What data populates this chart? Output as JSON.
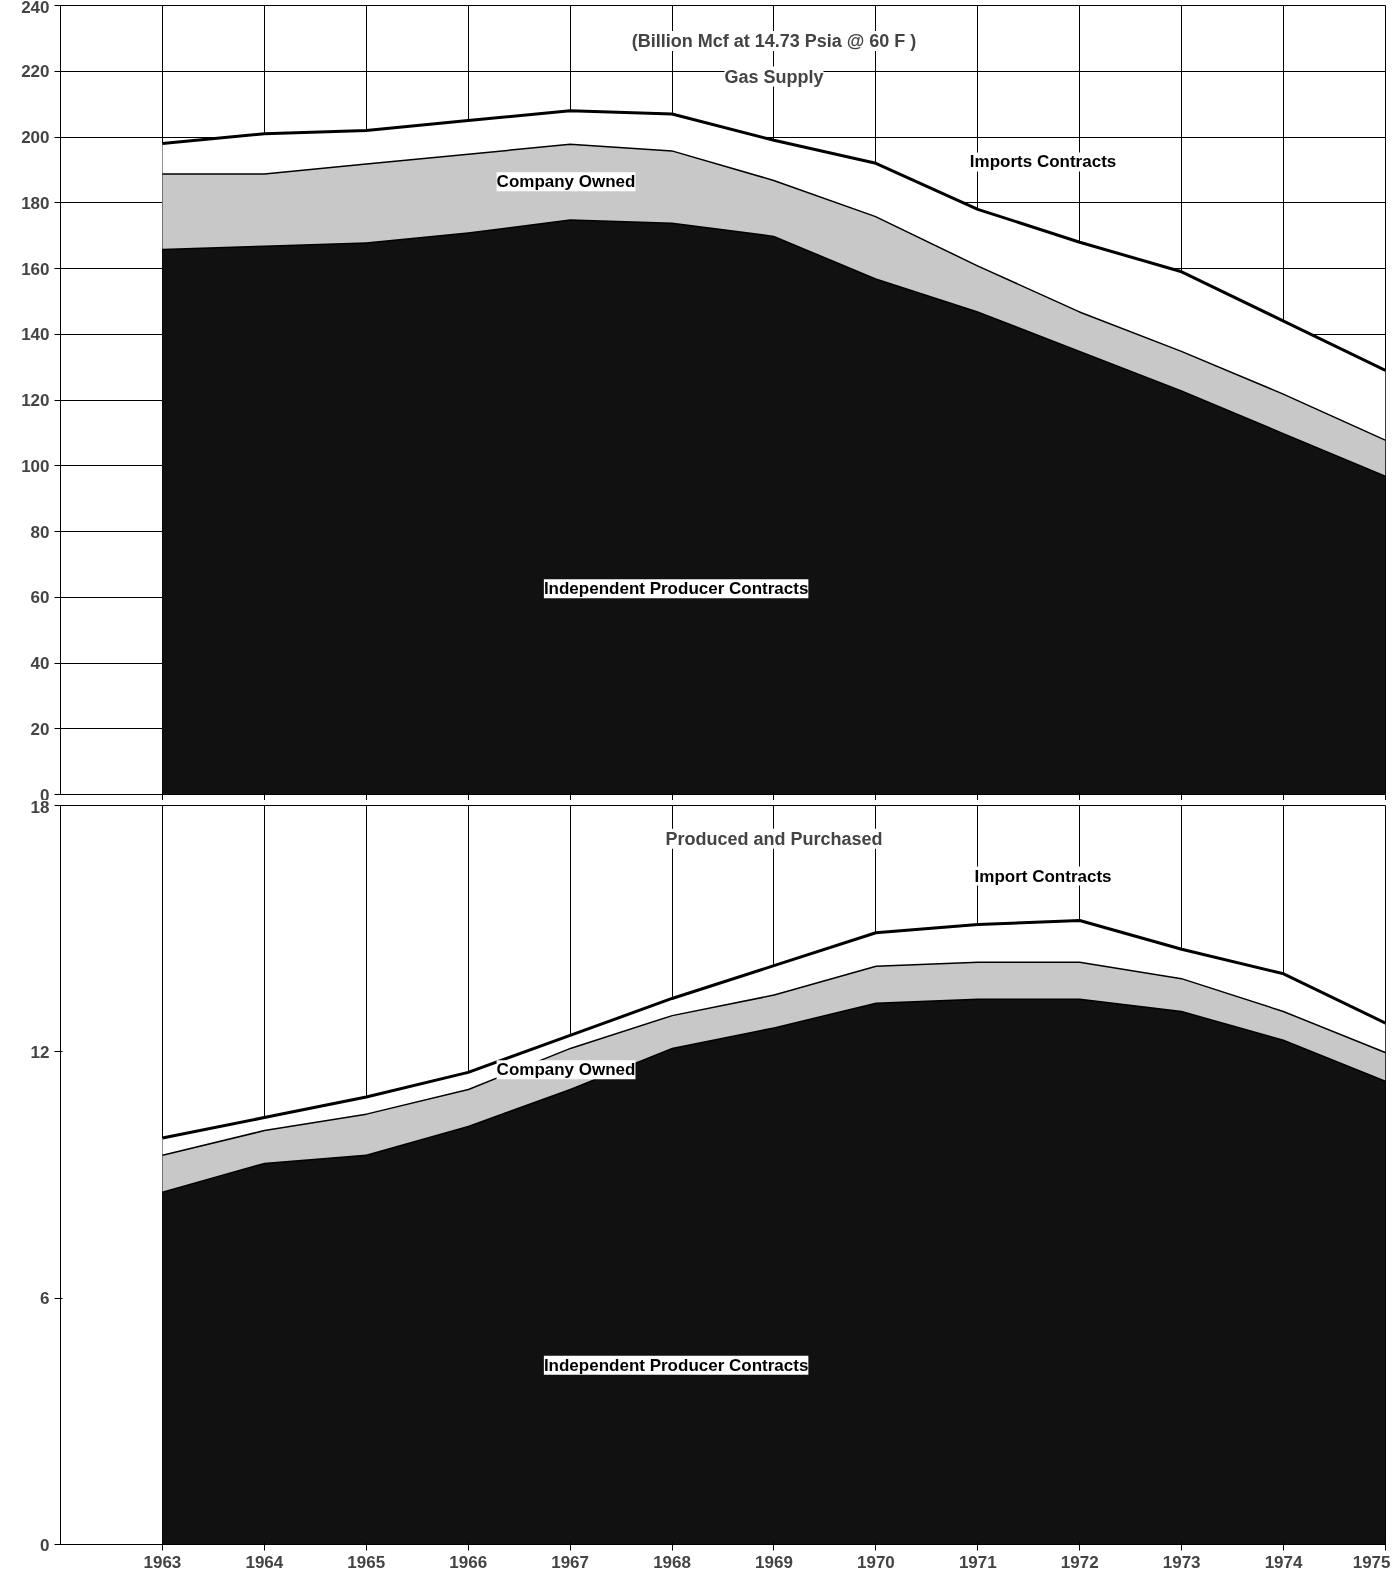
{
  "chart_data": [
    {
      "type": "area",
      "stacked": true,
      "title": "Gas Supply",
      "subtitle": "(Billion Mcf at 14.73 Psia @ 60 F )",
      "x": [
        1963,
        1964,
        1965,
        1966,
        1967,
        1968,
        1969,
        1970,
        1971,
        1972,
        1973,
        1974,
        1975
      ],
      "xlim": [
        1962,
        1975
      ],
      "xticks": [
        1963,
        1964,
        1965,
        1966,
        1967,
        1968,
        1969,
        1970,
        1971,
        1972,
        1973,
        1974,
        1975
      ],
      "ylim": [
        0,
        240
      ],
      "yticks": [
        0,
        20,
        40,
        60,
        80,
        100,
        120,
        140,
        160,
        180,
        200,
        220,
        240
      ],
      "grid": true,
      "tick_labels": "y",
      "series": [
        {
          "name": "Independent Producer Contracts",
          "color": "#111111",
          "values": [
            166,
            167,
            168,
            171,
            175,
            174,
            170,
            157,
            147,
            135,
            123,
            110,
            97
          ]
        },
        {
          "name": "Company Owned",
          "color": "#c8c8c8",
          "values": [
            23,
            22,
            24,
            24,
            23,
            22,
            17,
            19,
            14,
            12,
            12,
            12,
            11
          ]
        },
        {
          "name": "Imports Contracts",
          "color": "#ffffff",
          "values": [
            9,
            12,
            10,
            10,
            10,
            11,
            12,
            16,
            17,
            21,
            24,
            22,
            21
          ]
        }
      ]
    },
    {
      "type": "area",
      "stacked": true,
      "title": "Produced and Purchased",
      "x": [
        1963,
        1964,
        1965,
        1966,
        1967,
        1968,
        1969,
        1970,
        1971,
        1972,
        1973,
        1974,
        1975
      ],
      "xlim": [
        1962,
        1975
      ],
      "xticks": [
        1963,
        1964,
        1965,
        1966,
        1967,
        1968,
        1969,
        1970,
        1971,
        1972,
        1973,
        1974,
        1975
      ],
      "ylim": [
        0,
        18
      ],
      "yticks": [
        0,
        6,
        12,
        18
      ],
      "grid": "x",
      "series": [
        {
          "name": "Independent Producer Contracts",
          "color": "#111111",
          "values": [
            8.6,
            9.3,
            9.5,
            10.2,
            11.1,
            12.1,
            12.6,
            13.2,
            13.3,
            13.3,
            13.0,
            12.3,
            11.3
          ]
        },
        {
          "name": "Company Owned",
          "color": "#c8c8c8",
          "values": [
            0.9,
            0.8,
            1.0,
            0.9,
            1.0,
            0.8,
            0.8,
            0.9,
            0.9,
            0.9,
            0.8,
            0.7,
            0.7
          ]
        },
        {
          "name": "Import Contracts",
          "color": "#ffffff",
          "values": [
            0.4,
            0.3,
            0.4,
            0.4,
            0.3,
            0.4,
            0.7,
            0.8,
            0.9,
            1.0,
            0.7,
            0.9,
            0.7
          ]
        }
      ]
    }
  ]
}
